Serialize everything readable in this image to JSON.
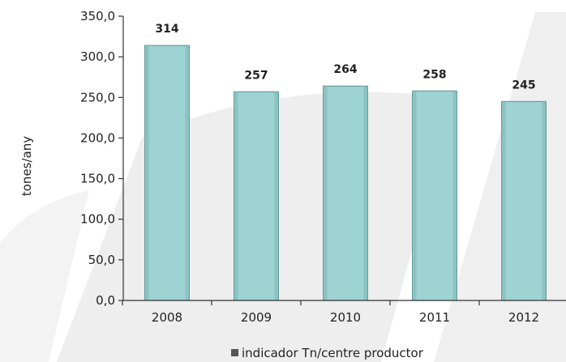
{
  "chart_data": {
    "type": "bar",
    "categories": [
      "2008",
      "2009",
      "2010",
      "2011",
      "2012"
    ],
    "values": [
      314,
      257,
      264,
      258,
      245
    ],
    "data_labels": [
      "314",
      "257",
      "264",
      "258",
      "245"
    ],
    "ylabel": "tones/any",
    "ylim": [
      0,
      350
    ],
    "yticks": [
      0,
      50,
      100,
      150,
      200,
      250,
      300,
      350
    ],
    "ytick_labels": [
      "0,0",
      "50,0",
      "100,0",
      "150,0",
      "200,0",
      "250,0",
      "300,0",
      "350,0"
    ],
    "grid": false,
    "legend": {
      "position": "bottom",
      "label": "indicador Tn/centre productor"
    },
    "colors": {
      "bar": "#9ed3d3",
      "bar_edge": "#5d8f8f",
      "bar_shade": "#7fb8b8",
      "axis": "#333333",
      "watermark": "#eeeeee"
    }
  }
}
